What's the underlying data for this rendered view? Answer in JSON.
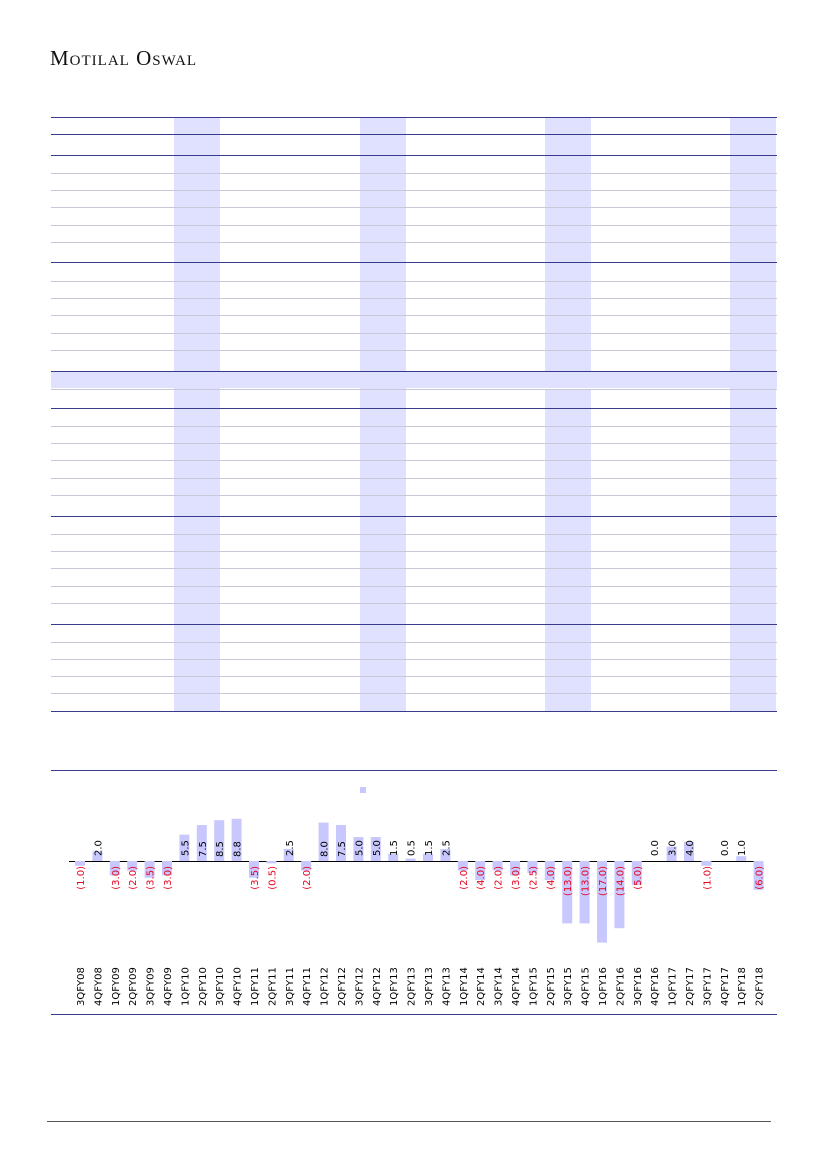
{
  "header": {
    "brand": "Motilal Oswal"
  },
  "colors": {
    "accent_band": "#e0e0ff",
    "rule": "#3a3a8c",
    "negative_label": "#e8001c"
  },
  "chart_data": {
    "type": "bar",
    "categories": [
      "3QFY08",
      "4QFY08",
      "1QFY09",
      "2QFY09",
      "3QFY09",
      "4QFY09",
      "1QFY10",
      "2QFY10",
      "3QFY10",
      "4QFY10",
      "1QFY11",
      "2QFY11",
      "3QFY11",
      "4QFY11",
      "1QFY12",
      "2QFY12",
      "3QFY12",
      "4QFY12",
      "1QFY13",
      "2QFY13",
      "3QFY13",
      "4QFY13",
      "1QFY14",
      "2QFY14",
      "3QFY14",
      "4QFY14",
      "1QFY15",
      "2QFY15",
      "3QFY15",
      "4QFY15",
      "1QFY16",
      "2QFY16",
      "3QFY16",
      "4QFY16",
      "1QFY17",
      "2QFY17",
      "3QFY17",
      "4QFY17",
      "1QFY18",
      "2QFY18"
    ],
    "values": [
      -1.0,
      2.0,
      -3.0,
      -2.0,
      -3.5,
      -3.0,
      5.5,
      7.5,
      8.5,
      8.8,
      -3.5,
      -0.5,
      2.5,
      -2.0,
      8.0,
      7.5,
      5.0,
      5.0,
      1.5,
      0.5,
      1.5,
      2.5,
      -2.0,
      -4.0,
      -2.0,
      -3.0,
      -2.5,
      -4.0,
      -13.0,
      -13.0,
      -17.0,
      -14.0,
      -5.0,
      0.0,
      3.0,
      4.0,
      -1.0,
      0.0,
      1.0,
      -6.0
    ],
    "labels": [
      "(1.0)",
      "2.0",
      "(3.0)",
      "(2.0)",
      "(3.5)",
      "(3.0)",
      "5.5",
      "7.5",
      "8.5",
      "8.8",
      "(3.5)",
      "(0.5)",
      "2.5",
      "(2.0)",
      "8.0",
      "7.5",
      "5.0",
      "5.0",
      "1.5",
      "0.5",
      "1.5",
      "2.5",
      "(2.0)",
      "(4.0)",
      "(2.0)",
      "(3.0)",
      "(2.5)",
      "(4.0)",
      "(13.0)",
      "(13.0)",
      "(17.0)",
      "(14.0)",
      "(5.0)",
      "0.0",
      "3.0",
      "4.0",
      "(1.0)",
      "0.0",
      "1.0",
      "(6.0)"
    ],
    "legend": "top",
    "grid": false
  }
}
